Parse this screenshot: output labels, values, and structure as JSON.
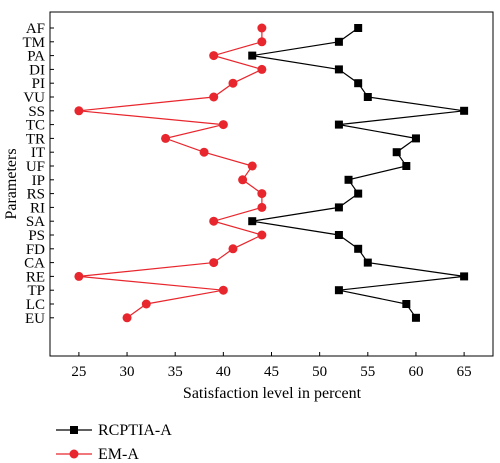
{
  "chart_data": {
    "type": "line",
    "orientation": "horizontal",
    "xlabel": "Satisfaction level in percent",
    "ylabel": "Parameters",
    "xlim": [
      22,
      68
    ],
    "xticks": [
      25,
      30,
      35,
      40,
      45,
      50,
      55,
      60,
      65
    ],
    "categories": [
      "AF",
      "TM",
      "PA",
      "DI",
      "PI",
      "VU",
      "SS",
      "TC",
      "TR",
      "IT",
      "UF",
      "IP",
      "RS",
      "RI",
      "SA",
      "PS",
      "FD",
      "CA",
      "RE",
      "TP",
      "LC",
      "EU"
    ],
    "series": [
      {
        "name": "RCPTIA-A",
        "color": "#000000",
        "marker": "square",
        "values": [
          54,
          52,
          43,
          52,
          54,
          55,
          65,
          52,
          60,
          58,
          59,
          53,
          54,
          52,
          43,
          52,
          54,
          55,
          65,
          52,
          59,
          60
        ]
      },
      {
        "name": "EM-A",
        "color": "#e8262d",
        "marker": "circle",
        "values": [
          44,
          44,
          39,
          44,
          41,
          39,
          25,
          40,
          34,
          38,
          43,
          42,
          44,
          44,
          39,
          44,
          41,
          39,
          25,
          40,
          32,
          30
        ]
      }
    ],
    "legend_position": "bottom-left",
    "grid": false
  }
}
